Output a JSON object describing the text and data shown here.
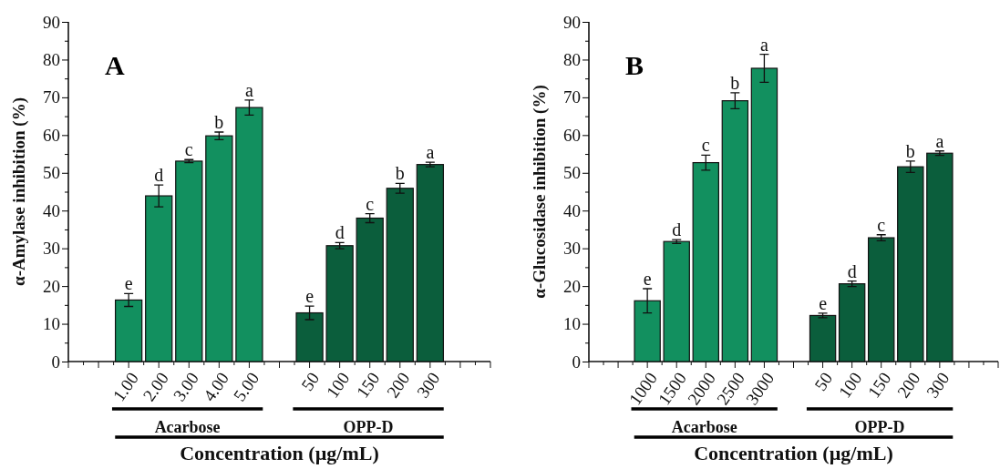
{
  "chart_data": [
    {
      "type": "bar",
      "title": "A",
      "ylabel": "α-Amylase inhibition (%)",
      "xlabel": "Concentration (µg/mL)",
      "categories": [
        null,
        "1.00",
        "2.00",
        "3.00",
        "4.00",
        "5.00",
        null,
        "50",
        "100",
        "150",
        "200",
        "300",
        null
      ],
      "values": [
        null,
        16.3,
        43.9,
        53.1,
        59.8,
        67.3,
        null,
        12.9,
        30.7,
        38.0,
        45.9,
        52.2,
        null
      ],
      "errors": [
        null,
        1.7,
        2.9,
        0.4,
        1.0,
        2.0,
        null,
        1.8,
        0.8,
        1.2,
        1.3,
        0.6,
        null
      ],
      "colors": [
        null,
        "#12905f",
        "#12905f",
        "#12905f",
        "#12905f",
        "#12905f",
        null,
        "#0b5e3c",
        "#0b5e3c",
        "#0b5e3c",
        "#0b5e3c",
        "#0b5e3c",
        null
      ],
      "ylim": [
        0,
        90
      ],
      "yticks": [
        0,
        {
          "value": 5,
          "label": null
        },
        10,
        {
          "value": 15,
          "label": null
        },
        20,
        {
          "value": 25,
          "label": null
        },
        30,
        {
          "value": 35,
          "label": null
        },
        40,
        {
          "value": 45,
          "label": null
        },
        50,
        {
          "value": 55,
          "label": null
        },
        60,
        {
          "value": 65,
          "label": null
        },
        70,
        {
          "value": 75,
          "label": null
        },
        80,
        {
          "value": 85,
          "label": null
        },
        90
      ],
      "annotations": [
        "Acarbose",
        "OPP-D",
        {
          "text": "e",
          "x": "1.00",
          "y": 18.0
        },
        {
          "text": "d",
          "x": "2.00",
          "y": 46.8
        },
        {
          "text": "c",
          "x": "3.00",
          "y": 53.5
        },
        {
          "text": "b",
          "x": "4.00",
          "y": 60.8
        },
        {
          "text": "a",
          "x": "5.00",
          "y": 69.3
        },
        {
          "text": "e",
          "x": "50",
          "y": 14.7
        },
        {
          "text": "d",
          "x": "100",
          "y": 31.5
        },
        {
          "text": "c",
          "x": "150",
          "y": 39.2
        },
        {
          "text": "b",
          "x": "200",
          "y": 47.2
        },
        {
          "text": "a",
          "x": "300",
          "y": 52.8
        }
      ]
    },
    {
      "type": "bar",
      "title": "B",
      "ylabel": "α-Glucosidase inhibition (%)",
      "xlabel": "Concentration (µg/mL)",
      "categories": [
        null,
        "1000",
        "1500",
        "2000",
        "2500",
        "3000",
        null,
        "50",
        "100",
        "150",
        "200",
        "300",
        null
      ],
      "values": [
        null,
        16.1,
        31.8,
        52.7,
        69.1,
        77.7,
        null,
        12.2,
        20.6,
        32.8,
        51.6,
        55.2,
        null
      ],
      "errors": [
        null,
        3.2,
        0.5,
        2.0,
        2.1,
        3.7,
        null,
        0.6,
        0.7,
        0.8,
        1.5,
        0.6,
        null
      ],
      "colors": [
        null,
        "#12905f",
        "#12905f",
        "#12905f",
        "#12905f",
        "#12905f",
        null,
        "#0b5e3c",
        "#0b5e3c",
        "#0b5e3c",
        "#0b5e3c",
        "#0b5e3c",
        null
      ],
      "ylim": [
        0,
        90
      ],
      "yticks": [
        0,
        {
          "value": 5,
          "label": null
        },
        10,
        {
          "value": 15,
          "label": null
        },
        20,
        {
          "value": 25,
          "label": null
        },
        30,
        {
          "value": 35,
          "label": null
        },
        40,
        {
          "value": 45,
          "label": null
        },
        50,
        {
          "value": 55,
          "label": null
        },
        60,
        {
          "value": 65,
          "label": null
        },
        70,
        {
          "value": 75,
          "label": null
        },
        80,
        {
          "value": 85,
          "label": null
        },
        90
      ],
      "annotations": [
        "Acarbose",
        "OPP-D",
        {
          "text": "e",
          "x": "1000",
          "y": 19.3
        },
        {
          "text": "d",
          "x": "1500",
          "y": 32.3
        },
        {
          "text": "c",
          "x": "2000",
          "y": 54.7
        },
        {
          "text": "b",
          "x": "2500",
          "y": 71.2
        },
        {
          "text": "a",
          "x": "3000",
          "y": 81.4
        },
        {
          "text": "e",
          "x": "50",
          "y": 12.8
        },
        {
          "text": "d",
          "x": "100",
          "y": 21.3
        },
        {
          "text": "c",
          "x": "150",
          "y": 33.6
        },
        {
          "text": "b",
          "x": "200",
          "y": 53.1
        },
        {
          "text": "a",
          "x": "300",
          "y": 55.8
        }
      ]
    }
  ]
}
